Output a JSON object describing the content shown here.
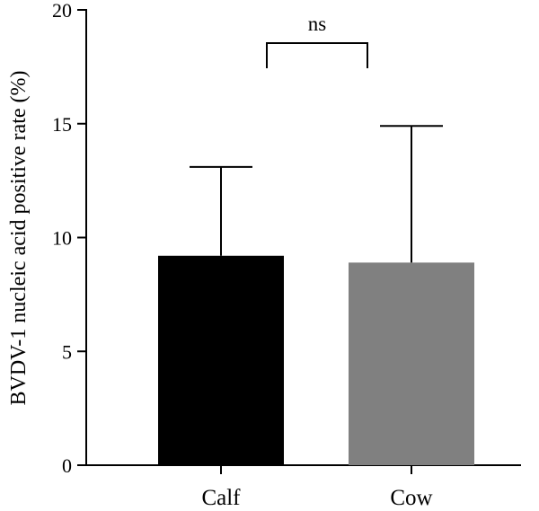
{
  "chart_data": {
    "type": "bar",
    "ylabel": "BVDV-1 nucleic acid positive rate (%)",
    "xlabel": "",
    "ylim": [
      0,
      20
    ],
    "yticks": [
      0,
      5,
      10,
      15,
      20
    ],
    "grid": false,
    "categories": [
      "Calf",
      "Cow"
    ],
    "values": [
      9.2,
      8.9
    ],
    "error_upper": [
      13.1,
      14.9
    ],
    "colors": [
      "#000000",
      "#808080"
    ],
    "significance": {
      "between": [
        "Calf",
        "Cow"
      ],
      "label": "ns"
    }
  }
}
